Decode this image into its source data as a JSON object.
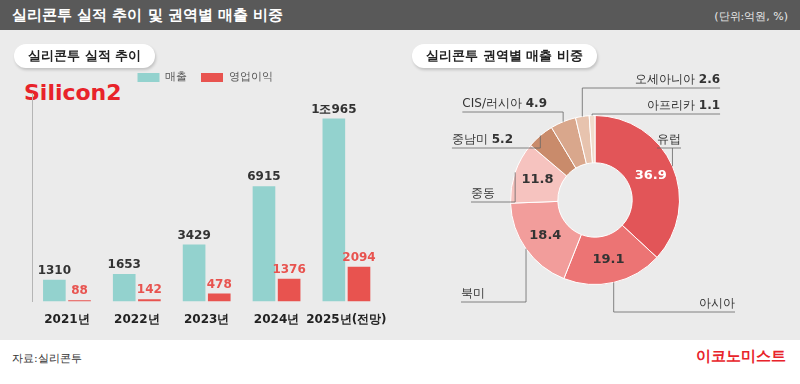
{
  "header": {
    "title": "실리콘투 실적 추이 및 권역별 매출 비중",
    "unit": "(단위:억원, %)"
  },
  "logo": "Silicon2",
  "footer": {
    "source": "자료:실리콘투",
    "brand": "이코노미스트"
  },
  "chart_data": [
    {
      "type": "bar",
      "title": "실리콘투 실적 추이",
      "categories": [
        "2021년",
        "2022년",
        "2023년",
        "2024년",
        "2025년(전망)"
      ],
      "series": [
        {
          "name": "매출",
          "color": "#93d2ce",
          "values": [
            1310,
            1653,
            3429,
            6915,
            10965
          ],
          "value_labels": [
            "1310",
            "1653",
            "3429",
            "6915",
            "1조965"
          ]
        },
        {
          "name": "영업이익",
          "color": "#e8534f",
          "values": [
            88,
            142,
            478,
            1376,
            2094
          ]
        }
      ],
      "ylim": [
        0,
        12500
      ],
      "legend": "top",
      "data_labels": true,
      "tick_labels": "x",
      "grid": false
    },
    {
      "type": "doughnut",
      "title": "실리콘투 권역별 매출 비중",
      "categories": [
        "유럽",
        "아시아",
        "북미",
        "중동",
        "중남미",
        "CIS/러시아",
        "오세아니아",
        "아프리카"
      ],
      "values": [
        36.9,
        19.1,
        18.4,
        11.8,
        5.2,
        4.9,
        2.6,
        1.1
      ],
      "colors": [
        "#e25558",
        "#ec7474",
        "#f29d9b",
        "#f6c3bf",
        "#c98b6b",
        "#d9a78c",
        "#e7c3ae",
        "#f1dccd"
      ],
      "data_labels": true
    }
  ]
}
